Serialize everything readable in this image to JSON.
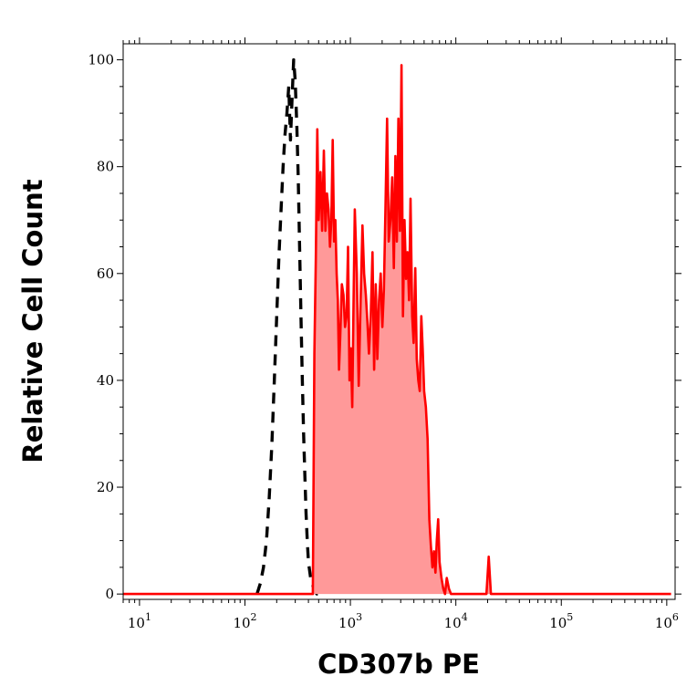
{
  "chart_data": {
    "type": "area",
    "xlabel": "CD307b PE",
    "ylabel": "Relative Cell Count",
    "x_scale": "log",
    "xlim": [
      7,
      1200000
    ],
    "ylim": [
      -1,
      103
    ],
    "grid": false,
    "x_ticks": [
      {
        "base": "10",
        "exp": "1",
        "value": 10
      },
      {
        "base": "10",
        "exp": "2",
        "value": 100
      },
      {
        "base": "10",
        "exp": "3",
        "value": 1000
      },
      {
        "base": "10",
        "exp": "4",
        "value": 10000
      },
      {
        "base": "10",
        "exp": "5",
        "value": 100000
      },
      {
        "base": "10",
        "exp": "6",
        "value": 1000000
      }
    ],
    "y_ticks": [
      {
        "label": "0",
        "value": 0
      },
      {
        "label": "20",
        "value": 20
      },
      {
        "label": "40",
        "value": 40
      },
      {
        "label": "60",
        "value": 60
      },
      {
        "label": "80",
        "value": 80
      },
      {
        "label": "100",
        "value": 100
      }
    ],
    "series": [
      {
        "style": "dashed",
        "color": "#000000",
        "x": [
          130,
          140,
          150,
          160,
          170,
          180,
          190,
          200,
          210,
          220,
          230,
          240,
          250,
          260,
          270,
          280,
          290,
          300,
          310,
          320,
          330,
          340,
          350,
          360,
          370,
          380,
          390,
          400,
          420,
          450,
          480,
          500,
          550
        ],
        "y": [
          0,
          2,
          5,
          10,
          18,
          28,
          40,
          52,
          63,
          72,
          80,
          86,
          90,
          95,
          85,
          93,
          100,
          96,
          88,
          78,
          65,
          52,
          40,
          30,
          22,
          15,
          10,
          6,
          3,
          1,
          0,
          0,
          0
        ]
      },
      {
        "style": "filled",
        "color": "#ff0000",
        "fill": "#ff9999",
        "x": [
          7,
          300,
          440,
          455,
          470,
          485,
          500,
          520,
          540,
          560,
          580,
          600,
          620,
          640,
          660,
          680,
          700,
          720,
          740,
          760,
          780,
          800,
          830,
          860,
          890,
          920,
          950,
          980,
          1010,
          1040,
          1070,
          1100,
          1150,
          1200,
          1250,
          1300,
          1350,
          1400,
          1450,
          1500,
          1560,
          1620,
          1680,
          1740,
          1800,
          1870,
          1940,
          2010,
          2080,
          2150,
          2230,
          2310,
          2400,
          2490,
          2580,
          2670,
          2760,
          2850,
          2950,
          3050,
          3150,
          3260,
          3370,
          3480,
          3600,
          3720,
          3850,
          3980,
          4120,
          4260,
          4400,
          4550,
          4700,
          4850,
          5000,
          5200,
          5400,
          5600,
          5800,
          6000,
          6200,
          6400,
          6600,
          6800,
          7000,
          7300,
          7600,
          7900,
          8200,
          8600,
          9000,
          9400,
          9800,
          10500,
          11000,
          15000,
          18000,
          19500,
          20500,
          21500,
          23000,
          100000,
          1100000
        ],
        "y": [
          0,
          0,
          0,
          45,
          63,
          87,
          70,
          79,
          68,
          83,
          68,
          75,
          72,
          65,
          70,
          85,
          66,
          70,
          60,
          55,
          42,
          48,
          58,
          56,
          50,
          52,
          65,
          40,
          46,
          35,
          54,
          72,
          60,
          39,
          55,
          69,
          60,
          56,
          51,
          45,
          52,
          64,
          42,
          58,
          44,
          55,
          60,
          50,
          57,
          72,
          89,
          66,
          70,
          78,
          61,
          82,
          66,
          89,
          68,
          99,
          52,
          70,
          59,
          64,
          55,
          74,
          52,
          47,
          61,
          44,
          40,
          38,
          52,
          46,
          38,
          35,
          29,
          14,
          9,
          5,
          8,
          4,
          10,
          14,
          6,
          3,
          1,
          0,
          3,
          1,
          0,
          0,
          0,
          0,
          0,
          0,
          0,
          0,
          7,
          0,
          0,
          0,
          0
        ]
      }
    ]
  }
}
